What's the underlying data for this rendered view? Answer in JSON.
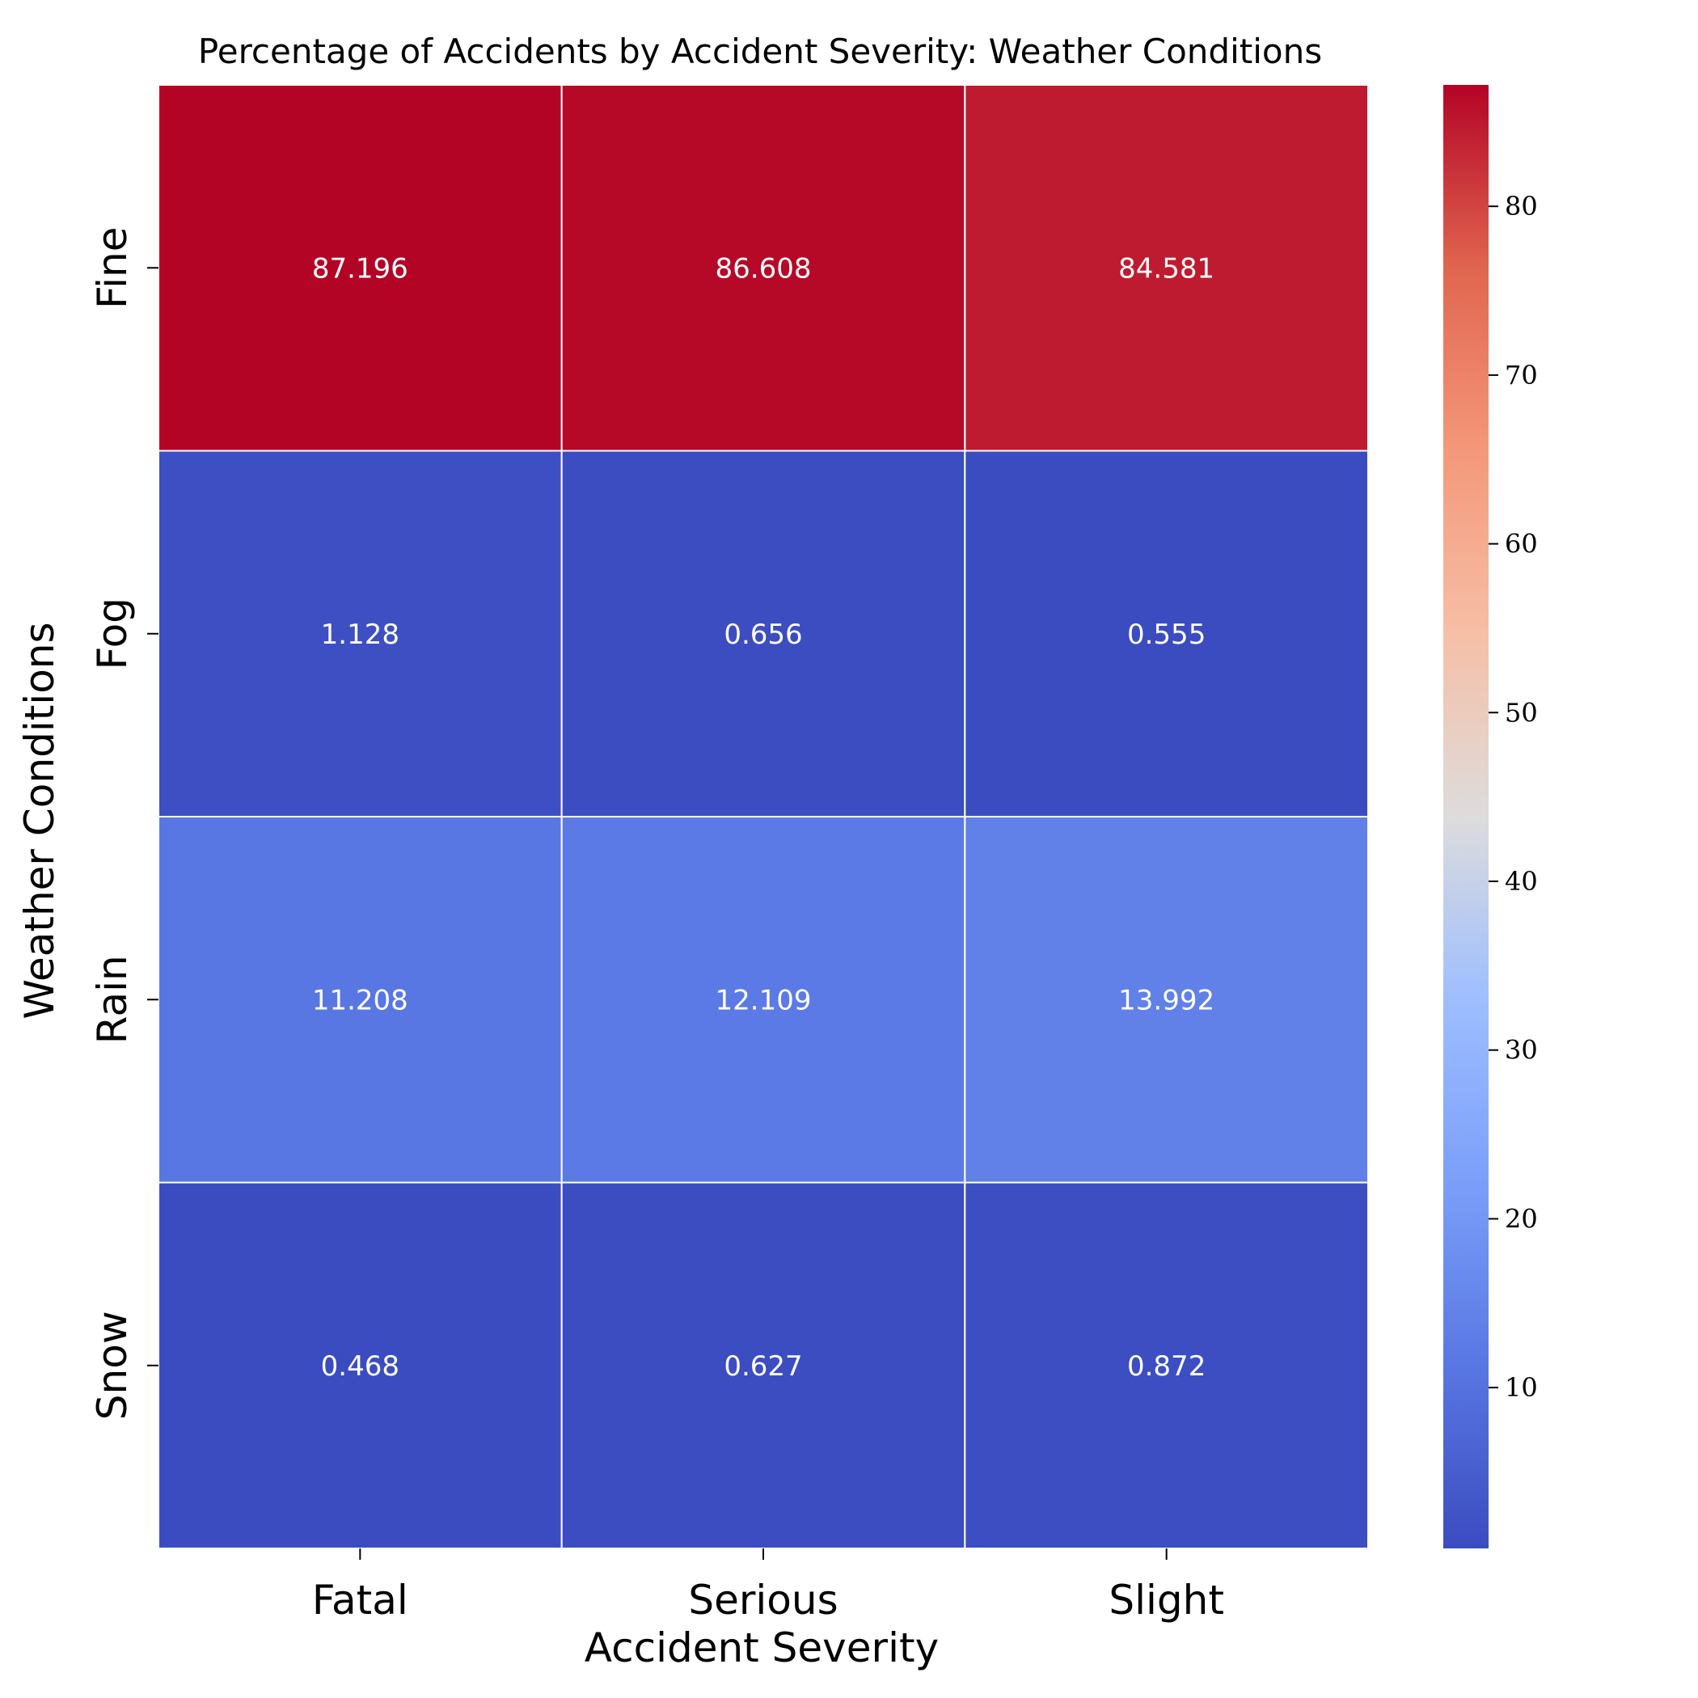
{
  "chart_data": {
    "type": "heatmap",
    "title": "Percentage of Accidents by Accident Severity: Weather Conditions",
    "xlabel": "Accident Severity",
    "ylabel": "Weather Conditions",
    "x_categories": [
      "Fatal",
      "Serious",
      "Slight"
    ],
    "y_categories": [
      "Fine",
      "Fog",
      "Rain",
      "Snow"
    ],
    "values": [
      [
        87.196,
        86.608,
        84.581
      ],
      [
        1.128,
        0.656,
        0.555
      ],
      [
        11.208,
        12.109,
        13.992
      ],
      [
        0.468,
        0.627,
        0.872
      ]
    ],
    "value_labels": [
      [
        "87.196",
        "86.608",
        "84.581"
      ],
      [
        "1.128",
        "0.656",
        "0.555"
      ],
      [
        "11.208",
        "12.109",
        "13.992"
      ],
      [
        "0.468",
        "0.627",
        "0.872"
      ]
    ],
    "colormap": "coolwarm",
    "colorbar": {
      "min": 0.468,
      "max": 87.196,
      "ticks": [
        10,
        20,
        30,
        40,
        50,
        60,
        70,
        80
      ],
      "tick_labels": [
        "10",
        "20",
        "30",
        "40",
        "50",
        "60",
        "70",
        "80"
      ]
    },
    "grid": false,
    "cell_border_color": "#ffffff"
  }
}
